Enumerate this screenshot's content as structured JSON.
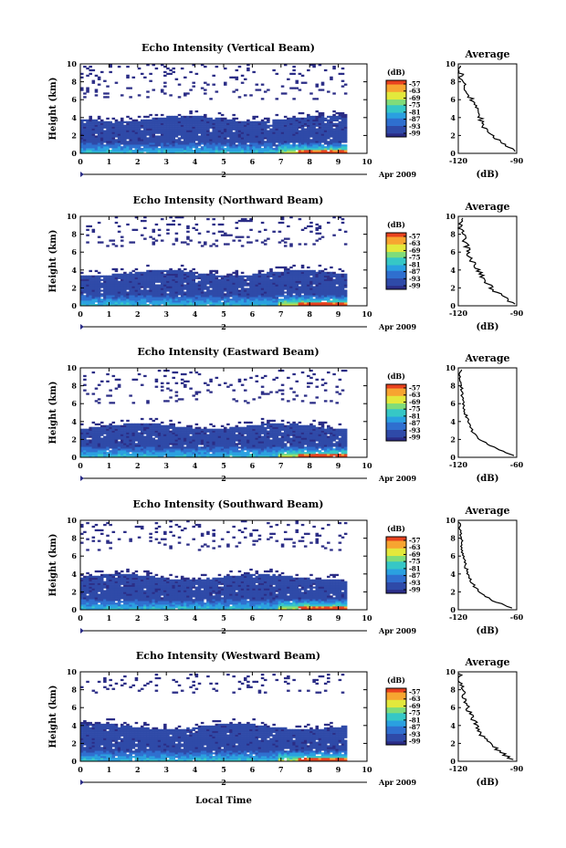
{
  "figure": {
    "xlabel": "Local Time",
    "date_label": "Apr 2009",
    "day_marker": "2"
  },
  "chart_data": [
    {
      "type": "heatmap",
      "title": "Echo Intensity (Vertical Beam)",
      "ylabel": "Height (km)",
      "x_ticks": [
        "0",
        "1",
        "2",
        "3",
        "4",
        "5",
        "6",
        "7",
        "8",
        "9",
        "10"
      ],
      "y_ticks": [
        "0",
        "2",
        "4",
        "6",
        "8",
        "10"
      ],
      "xlim": [
        0,
        10
      ],
      "ylim": [
        0,
        10
      ],
      "data_extent_x": [
        0,
        9.3
      ],
      "dense_layer_top_km": 3.8,
      "upper_echo_km": [
        6.0,
        10.0
      ],
      "colorbar": {
        "label": "(dB)",
        "ticks": [
          "-57",
          "-63",
          "-69",
          "-75",
          "-81",
          "-87",
          "-93",
          "-99"
        ]
      },
      "profile": {
        "title": "Average",
        "xlabel": "(dB)",
        "x_ticks": [
          "-120",
          "-90"
        ],
        "xlim": [
          -120,
          -90
        ],
        "y_ticks": [
          "0",
          "2",
          "4",
          "6",
          "8",
          "10"
        ],
        "height_km": [
          0.2,
          1,
          2,
          3,
          4,
          5,
          6,
          7,
          8,
          9,
          9.8
        ],
        "db": [
          -91,
          -96,
          -103,
          -107,
          -109,
          -111,
          -113,
          -116,
          -118,
          -119,
          -120
        ]
      }
    },
    {
      "type": "heatmap",
      "title": "Echo Intensity (Northward Beam)",
      "ylabel": "Height (km)",
      "x_ticks": [
        "0",
        "1",
        "2",
        "3",
        "4",
        "5",
        "6",
        "7",
        "8",
        "9",
        "10"
      ],
      "y_ticks": [
        "0",
        "2",
        "4",
        "6",
        "8",
        "10"
      ],
      "xlim": [
        0,
        10
      ],
      "ylim": [
        0,
        10
      ],
      "data_extent_x": [
        0,
        9.3
      ],
      "dense_layer_top_km": 3.6,
      "upper_echo_km": [
        6.5,
        9.8
      ],
      "colorbar": {
        "label": "(dB)",
        "ticks": [
          "-57",
          "-63",
          "-69",
          "-75",
          "-81",
          "-87",
          "-93",
          "-99"
        ]
      },
      "profile": {
        "title": "Average",
        "xlabel": "(dB)",
        "x_ticks": [
          "-120",
          "-90"
        ],
        "xlim": [
          -120,
          -90
        ],
        "y_ticks": [
          "0",
          "2",
          "4",
          "6",
          "8",
          "10"
        ],
        "height_km": [
          0.2,
          1,
          2,
          3,
          4,
          5,
          6,
          7,
          8,
          9,
          9.8
        ],
        "db": [
          -91,
          -97,
          -103,
          -107,
          -110,
          -113,
          -115,
          -116,
          -118,
          -119,
          -119
        ]
      }
    },
    {
      "type": "heatmap",
      "title": "Echo Intensity (Eastward Beam)",
      "ylabel": "Height (km)",
      "x_ticks": [
        "0",
        "1",
        "2",
        "3",
        "4",
        "5",
        "6",
        "7",
        "8",
        "9",
        "10"
      ],
      "y_ticks": [
        "0",
        "2",
        "4",
        "6",
        "8",
        "10"
      ],
      "xlim": [
        0,
        10
      ],
      "ylim": [
        0,
        10
      ],
      "data_extent_x": [
        0,
        9.3
      ],
      "dense_layer_top_km": 3.4,
      "upper_echo_km": [
        6.0,
        9.6
      ],
      "colorbar": {
        "label": "(dB)",
        "ticks": [
          "-57",
          "-63",
          "-69",
          "-75",
          "-81",
          "-87",
          "-93",
          "-99"
        ]
      },
      "profile": {
        "title": "Average",
        "xlabel": "(dB)",
        "x_ticks": [
          "-120",
          "-60"
        ],
        "xlim": [
          -120,
          -60
        ],
        "y_ticks": [
          "0",
          "2",
          "4",
          "6",
          "8",
          "10"
        ],
        "height_km": [
          0.2,
          1,
          2,
          3,
          4,
          5,
          6,
          7,
          8,
          9,
          9.8
        ],
        "db": [
          -63,
          -82,
          -98,
          -106,
          -110,
          -113,
          -115,
          -116,
          -117,
          -118,
          -118
        ]
      }
    },
    {
      "type": "heatmap",
      "title": "Echo Intensity (Southward Beam)",
      "ylabel": "Height (km)",
      "x_ticks": [
        "0",
        "1",
        "2",
        "3",
        "4",
        "5",
        "6",
        "7",
        "8",
        "9",
        "10"
      ],
      "y_ticks": [
        "0",
        "2",
        "4",
        "6",
        "8",
        "10"
      ],
      "xlim": [
        0,
        10
      ],
      "ylim": [
        0,
        10
      ],
      "data_extent_x": [
        0,
        9.3
      ],
      "dense_layer_top_km": 3.6,
      "upper_echo_km": [
        6.5,
        10.0
      ],
      "colorbar": {
        "label": "(dB)",
        "ticks": [
          "-57",
          "-63",
          "-69",
          "-75",
          "-81",
          "-87",
          "-93",
          "-99"
        ]
      },
      "profile": {
        "title": "Average",
        "xlabel": "(dB)",
        "x_ticks": [
          "-120",
          "-60"
        ],
        "xlim": [
          -120,
          -60
        ],
        "y_ticks": [
          "0",
          "2",
          "4",
          "6",
          "8",
          "10"
        ],
        "height_km": [
          0.2,
          1,
          2,
          3,
          4,
          5,
          6,
          7,
          8,
          9,
          9.8
        ],
        "db": [
          -65,
          -84,
          -99,
          -106,
          -110,
          -113,
          -115,
          -116,
          -117,
          -118,
          -119
        ]
      }
    },
    {
      "type": "heatmap",
      "title": "Echo Intensity (Westward Beam)",
      "ylabel": "Height (km)",
      "x_ticks": [
        "0",
        "1",
        "2",
        "3",
        "4",
        "5",
        "6",
        "7",
        "8",
        "9",
        "10"
      ],
      "y_ticks": [
        "0",
        "2",
        "4",
        "6",
        "8",
        "10"
      ],
      "xlim": [
        0,
        10
      ],
      "ylim": [
        0,
        10
      ],
      "data_extent_x": [
        0,
        9.3
      ],
      "dense_layer_top_km": 3.8,
      "upper_echo_km": [
        7.5,
        9.6
      ],
      "colorbar": {
        "label": "(dB)",
        "ticks": [
          "-57",
          "-63",
          "-69",
          "-75",
          "-81",
          "-87",
          "-93",
          "-99"
        ]
      },
      "profile": {
        "title": "Average",
        "xlabel": "(dB)",
        "x_ticks": [
          "-120",
          "-90"
        ],
        "xlim": [
          -120,
          -90
        ],
        "y_ticks": [
          "0",
          "2",
          "4",
          "6",
          "8",
          "10"
        ],
        "height_km": [
          0.2,
          1,
          2,
          3,
          4,
          5,
          6,
          7,
          8,
          9,
          9.8
        ],
        "db": [
          -92,
          -98,
          -104,
          -108,
          -111,
          -113,
          -115,
          -117,
          -118,
          -119,
          -119
        ]
      }
    }
  ],
  "colors": {
    "background": "#ffffff",
    "axis": "#000000",
    "colormap": [
      "#2b2d86",
      "#2f4aa8",
      "#2f6fcf",
      "#2aa0e0",
      "#36c7c6",
      "#7fdc7a",
      "#e3e83c",
      "#f7a531",
      "#e8421e"
    ]
  }
}
